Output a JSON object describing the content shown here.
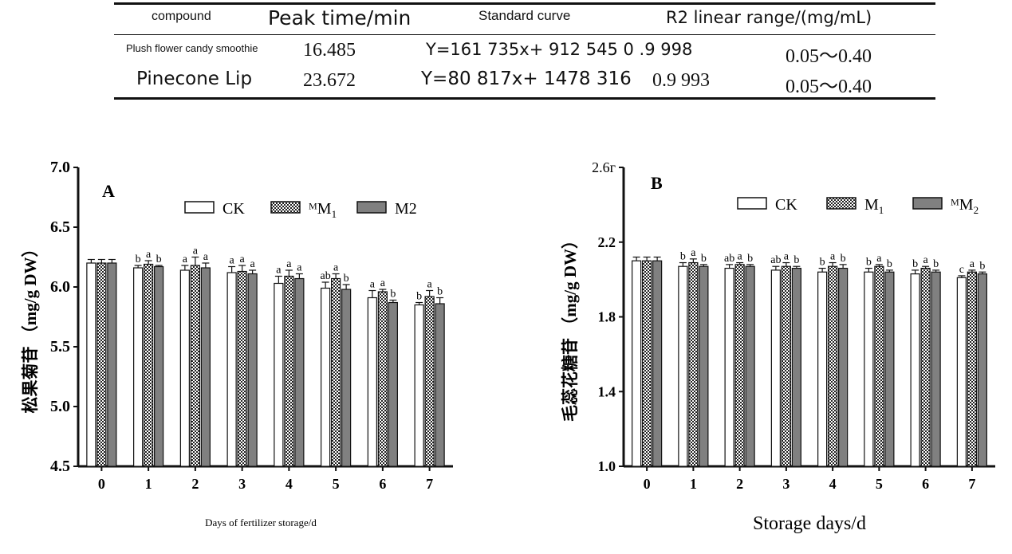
{
  "table": {
    "headers": [
      "compound",
      "Peak time/min",
      "Standard curve",
      "R2 linear range/(mg/mL)"
    ],
    "rows": [
      {
        "compound": "Plush flower candy smoothie",
        "peak_time": "16.485",
        "curve": "Y=161 735x+ 912 545 0 .9 998",
        "r2_range": "0.05～0.40"
      },
      {
        "compound": "Pinecone Lip",
        "peak_time": "23.672",
        "curve": "Y=80 817x+ 1478 316",
        "r2": "0.9 993",
        "r2_range": "0.05～0.40"
      }
    ]
  },
  "chart_data": [
    {
      "type": "bar",
      "panel_label": "A",
      "xlabel": "Days of fertilizer storage/d",
      "ylabel": "松果菊苷 （mg/g DW）",
      "categories": [
        "0",
        "1",
        "2",
        "3",
        "4",
        "5",
        "6",
        "7"
      ],
      "ylim": [
        4.5,
        7.0
      ],
      "yticks": [
        "4.5",
        "5.0",
        "5.5",
        "6.0",
        "6.5",
        "7.0"
      ],
      "legend_position": "top-right",
      "series": [
        {
          "name": "CK",
          "values": [
            6.2,
            6.16,
            6.14,
            6.12,
            6.03,
            5.99,
            5.91,
            5.85
          ],
          "errors": [
            0.03,
            0.02,
            0.04,
            0.05,
            0.06,
            0.05,
            0.06,
            0.02
          ],
          "letters": [
            "",
            "b",
            "a",
            "a",
            "a",
            "ab",
            "a",
            "b"
          ]
        },
        {
          "name": "M1",
          "values": [
            6.2,
            6.19,
            6.18,
            6.13,
            6.09,
            6.07,
            5.96,
            5.92
          ],
          "errors": [
            0.03,
            0.03,
            0.07,
            0.05,
            0.05,
            0.04,
            0.02,
            0.05
          ],
          "letters": [
            "",
            "a",
            "a",
            "a",
            "a",
            "a",
            "a",
            "a"
          ]
        },
        {
          "name": "M2",
          "values": [
            6.2,
            6.17,
            6.16,
            6.11,
            6.07,
            5.98,
            5.87,
            5.86
          ],
          "errors": [
            0.03,
            0.01,
            0.04,
            0.03,
            0.04,
            0.04,
            0.02,
            0.05
          ],
          "letters": [
            "",
            "b",
            "a",
            "a",
            "a",
            "b",
            "b",
            "b"
          ]
        }
      ],
      "legend_labels": [
        "CK",
        "ᴹM1",
        "M2"
      ]
    },
    {
      "type": "bar",
      "panel_label": "B",
      "xlabel": "Storage days/d",
      "ylabel": "毛蕊花糖苷 （mg/g DW）",
      "categories": [
        "0",
        "1",
        "2",
        "3",
        "4",
        "5",
        "6",
        "7"
      ],
      "ylim": [
        1.0,
        2.6
      ],
      "yticks": [
        "1.0",
        "1.4",
        "1.8",
        "2.2",
        "2.6г"
      ],
      "legend_position": "top-right",
      "series": [
        {
          "name": "CK",
          "values": [
            2.1,
            2.07,
            2.06,
            2.05,
            2.04,
            2.04,
            2.03,
            2.01
          ],
          "errors": [
            0.02,
            0.02,
            0.02,
            0.02,
            0.02,
            0.02,
            0.02,
            0.01
          ],
          "letters": [
            "",
            "b",
            "ab",
            "ab",
            "b",
            "b",
            "b",
            "c"
          ]
        },
        {
          "name": "M1",
          "values": [
            2.1,
            2.09,
            2.08,
            2.07,
            2.07,
            2.07,
            2.06,
            2.04
          ],
          "errors": [
            0.02,
            0.02,
            0.01,
            0.02,
            0.02,
            0.01,
            0.01,
            0.01
          ],
          "letters": [
            "",
            "a",
            "a",
            "a",
            "a",
            "a",
            "a",
            "a"
          ]
        },
        {
          "name": "M2",
          "values": [
            2.1,
            2.07,
            2.07,
            2.06,
            2.06,
            2.04,
            2.04,
            2.03
          ],
          "errors": [
            0.02,
            0.01,
            0.01,
            0.01,
            0.02,
            0.01,
            0.01,
            0.01
          ],
          "letters": [
            "",
            "b",
            "b",
            "b",
            "b",
            "b",
            "b",
            "b"
          ]
        }
      ],
      "legend_labels": [
        "CK",
        "M1",
        "ᴹM2"
      ]
    }
  ],
  "colors": {
    "ck_fill": "#ffffff",
    "m1_pattern": "#222222",
    "m2_fill": "#808080",
    "axis": "#111111"
  }
}
